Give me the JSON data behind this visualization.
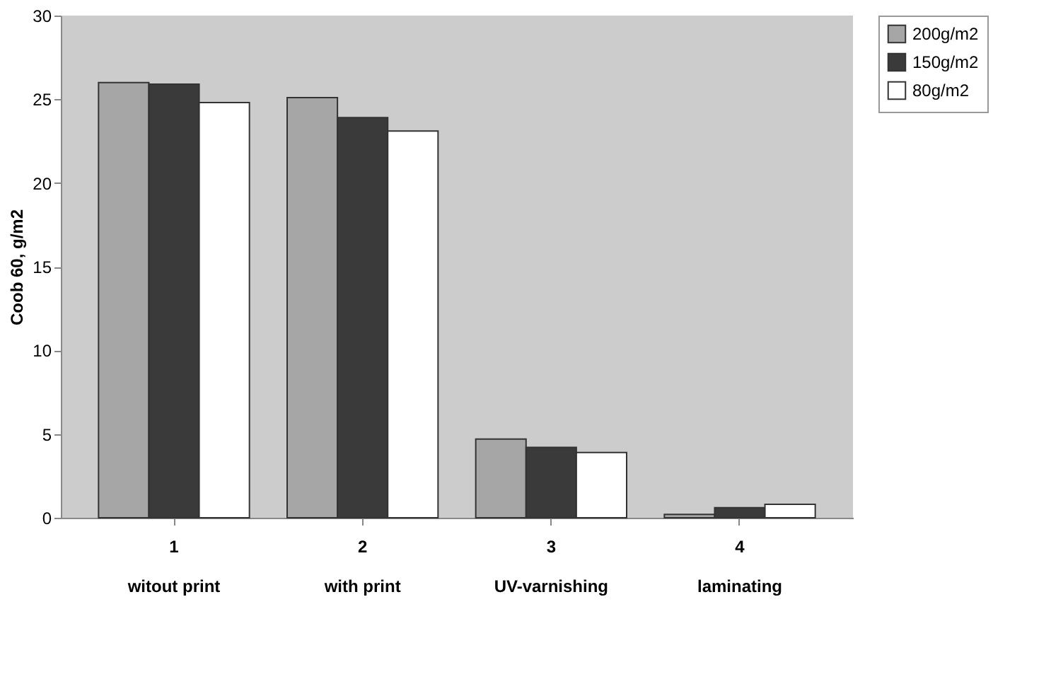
{
  "chart_data": {
    "type": "bar",
    "ylabel": "Coob 60, g/m2",
    "categories": [
      "1\nwitout print",
      "2\nwith print",
      "3\nUV-varnishing",
      "4\nlaminating"
    ],
    "series": [
      {
        "name": "200g/m2",
        "color": "#a6a6a6",
        "values": [
          26.0,
          25.1,
          4.7,
          0.2
        ]
      },
      {
        "name": "150g/m2",
        "color": "#3a3a3a",
        "values": [
          25.9,
          23.9,
          4.2,
          0.6
        ]
      },
      {
        "name": "80g/m2",
        "color": "#ffffff",
        "values": [
          24.8,
          23.1,
          3.9,
          0.8
        ]
      }
    ],
    "ylim": [
      0,
      30
    ],
    "yticks": [
      0,
      5,
      10,
      15,
      20,
      25,
      30
    ],
    "grid": false,
    "legend": "right"
  }
}
